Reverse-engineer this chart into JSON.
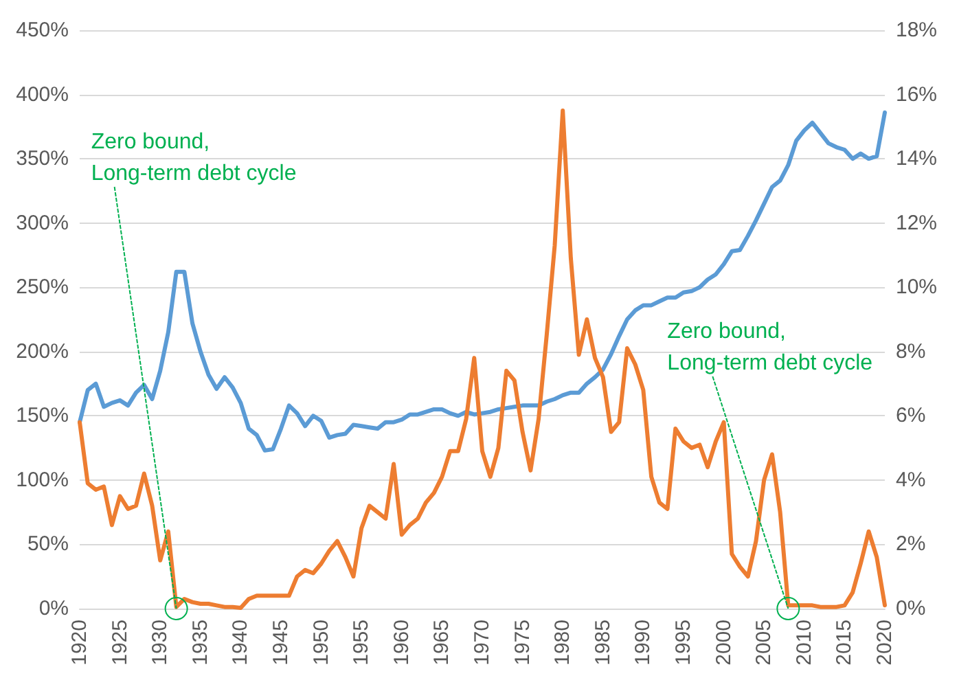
{
  "chart_data": {
    "type": "line",
    "x": [
      1920,
      1921,
      1922,
      1923,
      1924,
      1925,
      1926,
      1927,
      1928,
      1929,
      1930,
      1931,
      1932,
      1933,
      1934,
      1935,
      1936,
      1937,
      1938,
      1939,
      1940,
      1941,
      1942,
      1943,
      1944,
      1945,
      1946,
      1947,
      1948,
      1949,
      1950,
      1951,
      1952,
      1953,
      1954,
      1955,
      1956,
      1957,
      1958,
      1959,
      1960,
      1961,
      1962,
      1963,
      1964,
      1965,
      1966,
      1967,
      1968,
      1969,
      1970,
      1971,
      1972,
      1973,
      1974,
      1975,
      1976,
      1977,
      1978,
      1979,
      1980,
      1981,
      1982,
      1983,
      1984,
      1985,
      1986,
      1987,
      1988,
      1989,
      1990,
      1991,
      1992,
      1993,
      1994,
      1995,
      1996,
      1997,
      1998,
      1999,
      2000,
      2001,
      2002,
      2003,
      2004,
      2005,
      2006,
      2007,
      2008,
      2009,
      2010,
      2011,
      2012,
      2013,
      2014,
      2015,
      2016,
      2017,
      2018,
      2019,
      2020
    ],
    "series": [
      {
        "color": "#5b9bd5",
        "values": [
          145,
          170,
          175,
          157,
          160,
          162,
          158,
          168,
          174,
          163,
          185,
          215,
          262,
          262,
          222,
          200,
          182,
          171,
          180,
          172,
          160,
          140,
          135,
          123,
          124,
          140,
          158,
          152,
          142,
          150,
          146,
          133,
          135,
          136,
          143,
          142,
          141,
          140,
          145,
          145,
          147,
          151,
          151,
          153,
          155,
          155,
          152,
          150,
          153,
          151,
          152,
          153,
          155,
          156,
          157,
          158,
          158,
          158,
          161,
          163,
          166,
          168,
          168,
          175,
          180,
          186,
          198,
          212,
          225,
          232,
          236,
          236,
          239,
          242,
          242,
          246,
          247,
          250,
          256,
          260,
          268,
          278,
          279,
          290,
          302,
          315,
          328,
          333,
          345,
          364,
          372,
          378,
          370,
          362,
          359,
          357,
          350,
          354,
          350,
          352,
          386
        ]
      },
      {
        "color": "#ed7d31",
        "axis": "y2",
        "values": [
          5.8,
          3.9,
          3.7,
          3.8,
          2.6,
          3.5,
          3.1,
          3.2,
          4.2,
          3.2,
          1.5,
          2.4,
          0.05,
          0.3,
          0.2,
          0.15,
          0.15,
          0.1,
          0.05,
          0.05,
          0.02,
          0.3,
          0.4,
          0.4,
          0.4,
          0.4,
          0.4,
          1.0,
          1.2,
          1.1,
          1.4,
          1.8,
          2.1,
          1.6,
          1.0,
          2.5,
          3.2,
          3.0,
          2.8,
          4.5,
          2.3,
          2.6,
          2.8,
          3.3,
          3.6,
          4.1,
          4.9,
          4.9,
          5.9,
          7.8,
          4.9,
          4.1,
          5.0,
          7.4,
          7.1,
          5.5,
          4.3,
          5.9,
          8.5,
          11.3,
          15.5,
          10.9,
          7.9,
          9.0,
          7.8,
          7.2,
          5.5,
          5.8,
          8.1,
          7.6,
          6.8,
          4.1,
          3.3,
          3.1,
          5.6,
          5.2,
          5.0,
          5.1,
          4.4,
          5.2,
          5.8,
          1.7,
          1.3,
          1.0,
          2.1,
          4.0,
          4.8,
          3.0,
          0.1,
          0.1,
          0.1,
          0.1,
          0.05,
          0.05,
          0.05,
          0.1,
          0.5,
          1.4,
          2.4,
          1.6,
          0.1
        ]
      }
    ],
    "xlim": [
      1920,
      2020
    ],
    "xticks": [
      1920,
      1925,
      1930,
      1935,
      1940,
      1945,
      1950,
      1955,
      1960,
      1965,
      1970,
      1975,
      1980,
      1985,
      1990,
      1995,
      2000,
      2005,
      2010,
      2015,
      2020
    ],
    "ylim": [
      0,
      450
    ],
    "yticks": [
      {
        "value": 0,
        "label": "0%"
      },
      {
        "value": 50,
        "label": "50%"
      },
      {
        "value": 100,
        "label": "100%"
      },
      {
        "value": 150,
        "label": "150%"
      },
      {
        "value": 200,
        "label": "200%"
      },
      {
        "value": 250,
        "label": "250%"
      },
      {
        "value": 300,
        "label": "300%"
      },
      {
        "value": 350,
        "label": "350%"
      },
      {
        "value": 400,
        "label": "400%"
      },
      {
        "value": 450,
        "label": "450%"
      }
    ],
    "y2lim": [
      0,
      18
    ],
    "y2ticks": [
      {
        "value": 0,
        "label": "0%"
      },
      {
        "value": 2,
        "label": "2%"
      },
      {
        "value": 4,
        "label": "4%"
      },
      {
        "value": 6,
        "label": "6%"
      },
      {
        "value": 8,
        "label": "8%"
      },
      {
        "value": 10,
        "label": "10%"
      },
      {
        "value": 12,
        "label": "12%"
      },
      {
        "value": 14,
        "label": "14%"
      },
      {
        "value": 16,
        "label": "16%"
      },
      {
        "value": 18,
        "label": "18%"
      }
    ],
    "grid": "y",
    "marker": "none",
    "line_style": "solid",
    "annotations": [
      {
        "text": "Zero bound,\nLong-term debt cycle",
        "x": 1932,
        "y": 0
      },
      {
        "text": "Zero bound,\nLong-term debt cycle",
        "x": 2008,
        "y": 0
      }
    ]
  }
}
